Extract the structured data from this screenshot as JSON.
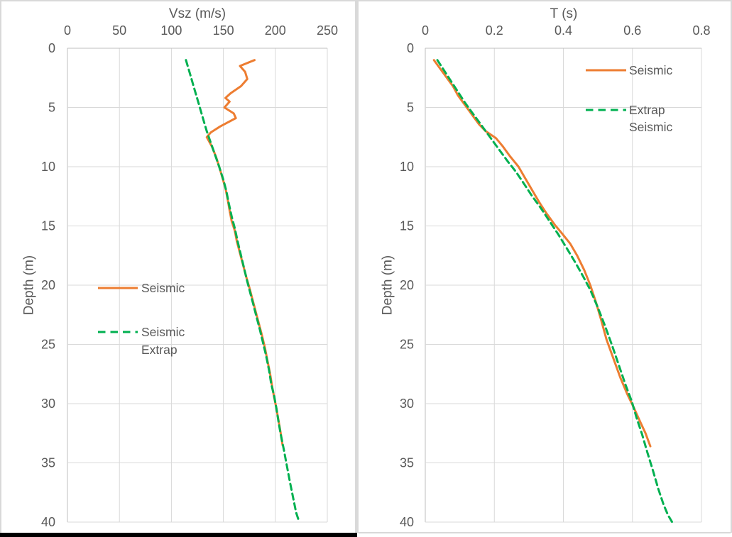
{
  "window": {
    "background": "#FFFFFF"
  },
  "colors": {
    "seismic": "#ED7D31",
    "extrap": "#00B050",
    "gridline": "#D9D9D9",
    "axis_line": "#BFBFBF",
    "text": "#595959",
    "panel_border": "#D9D9D9",
    "left_panel_bottom_bar": "#000000"
  },
  "chart_data": [
    {
      "type": "line",
      "title": "Vsz (m/s)",
      "xlabel": "Vsz (m/s)",
      "ylabel": "Depth (m)",
      "grid": true,
      "x_axis": {
        "min": 0,
        "max": 250,
        "position": "top",
        "tick_values": [
          0,
          50,
          100,
          150,
          200,
          250
        ],
        "tick_labels": [
          "0",
          "50",
          "100",
          "150",
          "200",
          "250"
        ]
      },
      "y_axis": {
        "min": 0,
        "max": 40,
        "direction": "down",
        "tick_values": [
          0,
          5,
          10,
          15,
          20,
          25,
          30,
          35,
          40
        ],
        "tick_labels": [
          "0",
          "5",
          "10",
          "15",
          "20",
          "25",
          "30",
          "35",
          "40"
        ]
      },
      "legend": {
        "position": "inside-center-left",
        "entries": [
          {
            "series": "Seismic",
            "label_lines": [
              "Seismic"
            ]
          },
          {
            "series": "Seismic Extrap",
            "label_lines": [
              "Seismic",
              "Extrap"
            ]
          }
        ]
      },
      "series": [
        {
          "name": "Seismic",
          "color": "#ED7D31",
          "style": "solid",
          "points": [
            [
              180,
              1
            ],
            [
              166,
              1.5
            ],
            [
              171,
              2
            ],
            [
              173,
              2.6
            ],
            [
              167,
              3.2
            ],
            [
              157,
              3.8
            ],
            [
              152,
              4.2
            ],
            [
              156,
              4.5
            ],
            [
              151,
              5
            ],
            [
              160,
              5.5
            ],
            [
              162,
              5.9
            ],
            [
              147,
              6.6
            ],
            [
              138,
              7.1
            ],
            [
              134,
              7.5
            ],
            [
              139,
              8.3
            ],
            [
              143,
              9.2
            ],
            [
              146,
              10
            ],
            [
              149,
              10.9
            ],
            [
              152,
              11.8
            ],
            [
              154,
              12.7
            ],
            [
              156,
              13.7
            ],
            [
              158,
              14.6
            ],
            [
              161,
              15.4
            ],
            [
              163,
              16.3
            ],
            [
              166,
              17.3
            ],
            [
              169,
              18.3
            ],
            [
              172,
              19.3
            ],
            [
              175,
              20.2
            ],
            [
              178,
              21.2
            ],
            [
              181,
              22.2
            ],
            [
              184,
              23.2
            ],
            [
              187,
              24.2
            ],
            [
              190,
              25.3
            ],
            [
              192,
              26.2
            ],
            [
              195,
              27.5
            ],
            [
              197,
              28.6
            ],
            [
              199,
              29.5
            ],
            [
              201,
              30.4
            ],
            [
              203,
              31.4
            ],
            [
              205,
              32.4
            ],
            [
              207,
              33.5
            ]
          ]
        },
        {
          "name": "Seismic Extrap",
          "color": "#00B050",
          "style": "dashed",
          "points": [
            [
              114,
              1
            ],
            [
              118,
              2.2
            ],
            [
              122,
              3.4
            ],
            [
              126,
              4.6
            ],
            [
              130,
              5.8
            ],
            [
              134,
              7
            ],
            [
              138,
              8
            ],
            [
              142,
              9
            ],
            [
              146,
              10
            ],
            [
              150,
              11.1
            ],
            [
              153,
              12.1
            ],
            [
              155,
              13
            ],
            [
              158,
              14.2
            ],
            [
              161,
              15.2
            ],
            [
              164,
              16.4
            ],
            [
              167,
              17.5
            ],
            [
              170,
              18.6
            ],
            [
              173,
              19.7
            ],
            [
              176,
              20.7
            ],
            [
              179,
              21.7
            ],
            [
              182,
              22.7
            ],
            [
              185,
              23.7
            ],
            [
              188,
              24.8
            ],
            [
              191,
              25.9
            ],
            [
              194,
              27.2
            ],
            [
              196,
              28.3
            ],
            [
              199,
              29.4
            ],
            [
              201,
              30.4
            ],
            [
              203,
              31.5
            ],
            [
              205,
              32.5
            ],
            [
              208,
              33.8
            ],
            [
              211,
              35.2
            ],
            [
              214,
              36.6
            ],
            [
              217,
              37.9
            ],
            [
              220,
              39.2
            ],
            [
              223,
              40
            ]
          ]
        }
      ]
    },
    {
      "type": "line",
      "title": "T (s)",
      "xlabel": "T (s)",
      "ylabel": "Depth (m)",
      "grid": true,
      "x_axis": {
        "min": 0,
        "max": 0.8,
        "position": "top",
        "tick_values": [
          0,
          0.2,
          0.4,
          0.6,
          0.8
        ],
        "tick_labels": [
          "0",
          "0.2",
          "0.4",
          "0.6",
          "0.8"
        ]
      },
      "y_axis": {
        "min": 0,
        "max": 40,
        "direction": "down",
        "tick_values": [
          0,
          5,
          10,
          15,
          20,
          25,
          30,
          35,
          40
        ],
        "tick_labels": [
          "0",
          "5",
          "10",
          "15",
          "20",
          "25",
          "30",
          "35",
          "40"
        ]
      },
      "legend": {
        "position": "inside-top-right",
        "entries": [
          {
            "series": "Seismic",
            "label_lines": [
              "Seismic"
            ]
          },
          {
            "series": "Extrap Seismic",
            "label_lines": [
              "Extrap",
              "Seismic"
            ]
          }
        ]
      },
      "series": [
        {
          "name": "Seismic",
          "color": "#ED7D31",
          "style": "solid",
          "points": [
            [
              0.025,
              1
            ],
            [
              0.05,
              2
            ],
            [
              0.065,
              2.6
            ],
            [
              0.08,
              3.2
            ],
            [
              0.095,
              4
            ],
            [
              0.11,
              4.6
            ],
            [
              0.125,
              5.2
            ],
            [
              0.14,
              5.8
            ],
            [
              0.155,
              6.4
            ],
            [
              0.175,
              7
            ],
            [
              0.205,
              7.6
            ],
            [
              0.225,
              8.3
            ],
            [
              0.245,
              9.1
            ],
            [
              0.27,
              10
            ],
            [
              0.29,
              11
            ],
            [
              0.31,
              12
            ],
            [
              0.33,
              13
            ],
            [
              0.35,
              13.9
            ],
            [
              0.375,
              14.9
            ],
            [
              0.395,
              15.6
            ],
            [
              0.42,
              16.5
            ],
            [
              0.44,
              17.5
            ],
            [
              0.46,
              18.7
            ],
            [
              0.478,
              20
            ],
            [
              0.495,
              21.5
            ],
            [
              0.51,
              23
            ],
            [
              0.525,
              24.6
            ],
            [
              0.545,
              26.2
            ],
            [
              0.565,
              27.8
            ],
            [
              0.585,
              29.2
            ],
            [
              0.605,
              30.4
            ],
            [
              0.622,
              31.5
            ],
            [
              0.638,
              32.5
            ],
            [
              0.652,
              33.6
            ]
          ]
        },
        {
          "name": "Extrap Seismic",
          "color": "#00B050",
          "style": "dashed",
          "points": [
            [
              0.035,
              1
            ],
            [
              0.055,
              1.9
            ],
            [
              0.075,
              2.8
            ],
            [
              0.095,
              3.7
            ],
            [
              0.115,
              4.6
            ],
            [
              0.135,
              5.4
            ],
            [
              0.155,
              6.2
            ],
            [
              0.175,
              7
            ],
            [
              0.195,
              7.8
            ],
            [
              0.215,
              8.6
            ],
            [
              0.24,
              9.6
            ],
            [
              0.262,
              10.4
            ],
            [
              0.285,
              11.4
            ],
            [
              0.31,
              12.5
            ],
            [
              0.335,
              13.5
            ],
            [
              0.36,
              14.6
            ],
            [
              0.385,
              15.7
            ],
            [
              0.41,
              16.9
            ],
            [
              0.435,
              18.1
            ],
            [
              0.458,
              19.3
            ],
            [
              0.478,
              20.4
            ],
            [
              0.5,
              21.9
            ],
            [
              0.52,
              23.4
            ],
            [
              0.54,
              25
            ],
            [
              0.56,
              26.7
            ],
            [
              0.58,
              28.4
            ],
            [
              0.598,
              29.8
            ],
            [
              0.612,
              31.2
            ],
            [
              0.628,
              32.6
            ],
            [
              0.643,
              34.1
            ],
            [
              0.66,
              35.7
            ],
            [
              0.675,
              37.2
            ],
            [
              0.69,
              38.5
            ],
            [
              0.703,
              39.4
            ],
            [
              0.715,
              40
            ]
          ]
        }
      ]
    }
  ]
}
